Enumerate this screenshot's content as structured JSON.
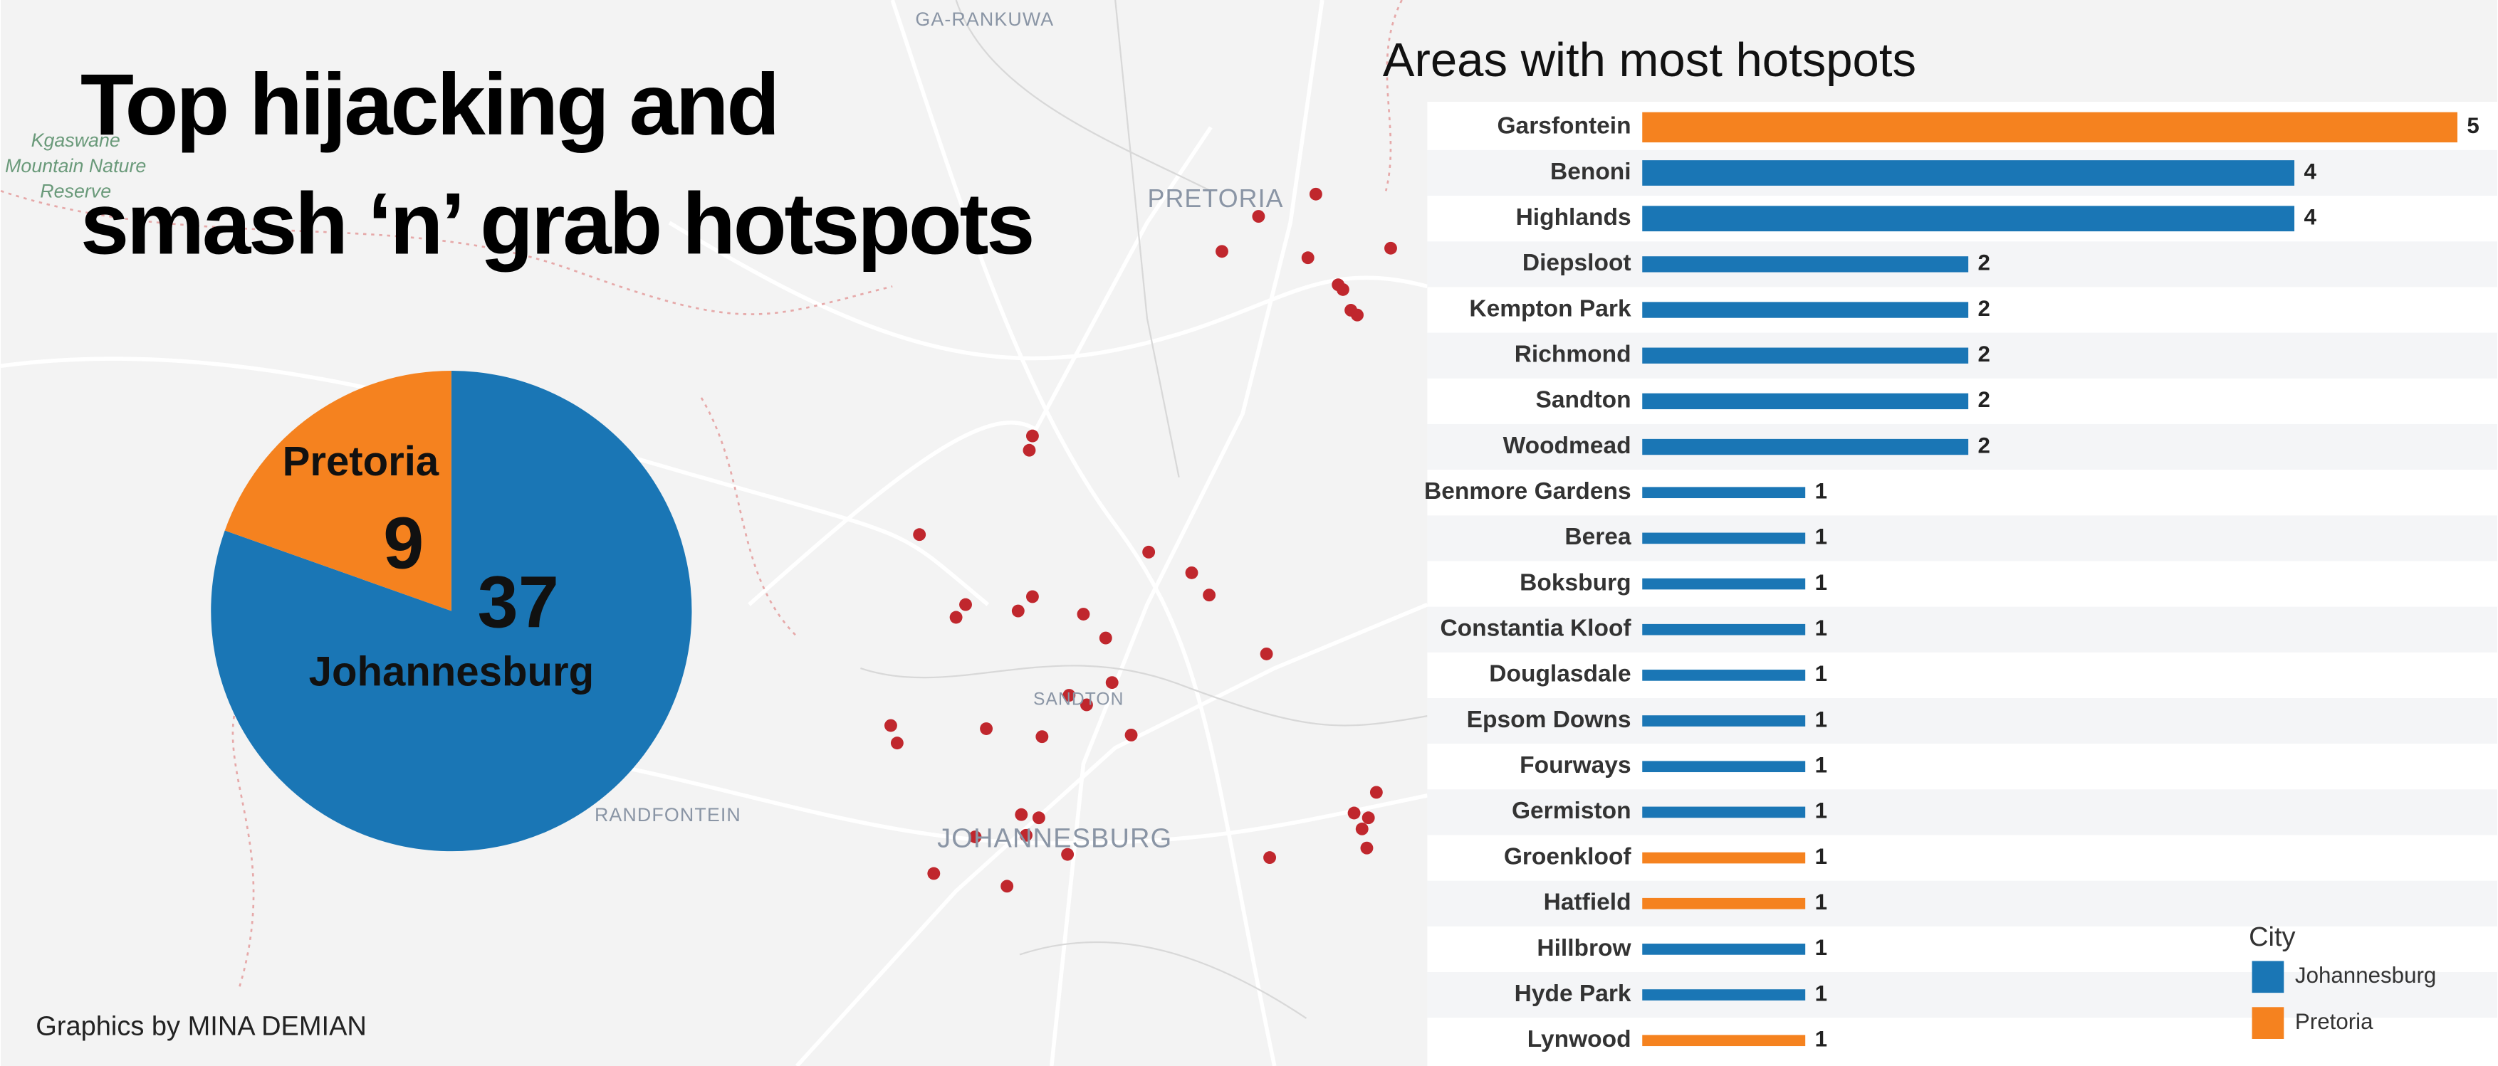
{
  "title": [
    "Top hijacking and",
    "smash ‘n’ grab hotspots"
  ],
  "credit": "Graphics by MINA DEMIAN",
  "map": {
    "places": [
      "GA-RANKUWA",
      "PRETORIA",
      "SANDTON",
      "JOHANNESBURG",
      "RANDFONTEIN"
    ],
    "reserve": [
      "Kgaswane",
      "Mountain Nature",
      "Reserve"
    ]
  },
  "chart_data": [
    {
      "type": "pie",
      "categories": [
        "Pretoria",
        "Johannesburg"
      ],
      "values": [
        9,
        37
      ],
      "colors": [
        "#f5821f",
        "#1a76b5"
      ]
    },
    {
      "type": "bar",
      "orientation": "horizontal",
      "title": "Areas with most hotspots",
      "categories": [
        "Garsfontein",
        "Benoni",
        "Highlands",
        "Diepsloot",
        "Kempton Park",
        "Richmond",
        "Sandton",
        "Woodmead",
        "Benmore Gardens",
        "Berea",
        "Boksburg",
        "Constantia Kloof",
        "Douglasdale",
        "Epsom Downs",
        "Fourways",
        "Germiston",
        "Groenkloof",
        "Hatfield",
        "Hillbrow",
        "Hyde Park",
        "Lynwood"
      ],
      "series": [
        {
          "name": "Johannesburg",
          "color": "#1a76b5",
          "values": [
            null,
            4,
            4,
            2,
            2,
            2,
            2,
            2,
            1,
            1,
            1,
            1,
            1,
            1,
            1,
            1,
            null,
            null,
            1,
            1,
            null
          ]
        },
        {
          "name": "Pretoria",
          "color": "#f5821f",
          "values": [
            5,
            null,
            null,
            null,
            null,
            null,
            null,
            null,
            null,
            null,
            null,
            null,
            null,
            null,
            null,
            null,
            1,
            1,
            null,
            null,
            1
          ]
        }
      ],
      "xlim": [
        0,
        5
      ],
      "legend_title": "City",
      "legend": "bottom-right"
    }
  ]
}
